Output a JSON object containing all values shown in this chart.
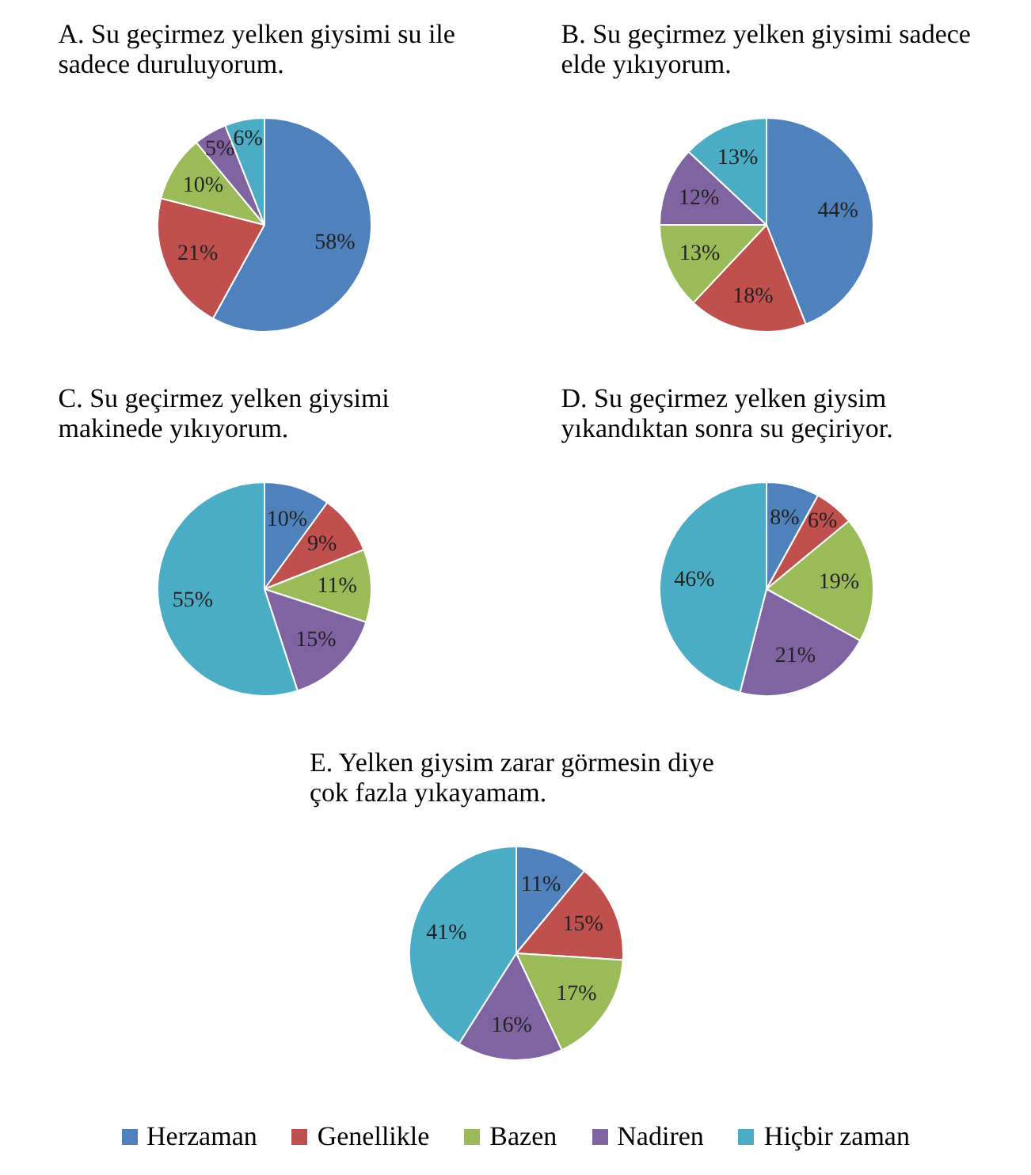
{
  "chart_data": [
    {
      "type": "pie",
      "title": "A.  Su geçirmez yelken giysimi su ile sadece duruluyorum.",
      "categories": [
        null,
        null,
        null,
        null,
        null
      ],
      "values": [
        58,
        21,
        10,
        5,
        6
      ],
      "colors": [
        "#4f81bd",
        "#c0504d",
        "#9bbb59",
        "#8064a2",
        "#4bacc6"
      ],
      "value_labels": [
        "58%",
        "21%",
        "10%",
        "5%",
        "6%"
      ]
    },
    {
      "type": "pie",
      "title": "B.  Su geçirmez yelken giysimi sadece elde yıkıyorum.",
      "categories": [
        null,
        null,
        null,
        null,
        null
      ],
      "values": [
        44,
        18,
        13,
        12,
        13
      ],
      "colors": [
        "#4f81bd",
        "#c0504d",
        "#9bbb59",
        "#8064a2",
        "#4bacc6"
      ],
      "value_labels": [
        "44%",
        "18%",
        "13%",
        "12%",
        "13%"
      ]
    },
    {
      "type": "pie",
      "title": "C.  Su geçirmez yelken giysimi makinede yıkıyorum.",
      "categories": [
        null,
        null,
        null,
        null,
        null
      ],
      "values": [
        10,
        9,
        11,
        15,
        55
      ],
      "colors": [
        "#4f81bd",
        "#c0504d",
        "#9bbb59",
        "#8064a2",
        "#4bacc6"
      ],
      "value_labels": [
        "10%",
        "9%",
        "11%",
        "15%",
        "55%"
      ]
    },
    {
      "type": "pie",
      "title": "D.  Su geçirmez yelken giysim yıkandıktan sonra su geçiriyor.",
      "categories": [
        null,
        null,
        null,
        null,
        null
      ],
      "values": [
        8,
        6,
        19,
        21,
        46
      ],
      "colors": [
        "#4f81bd",
        "#c0504d",
        "#9bbb59",
        "#8064a2",
        "#4bacc6"
      ],
      "value_labels": [
        "8%",
        "6%",
        "19%",
        "21%",
        "46%"
      ]
    },
    {
      "type": "pie",
      "title": "E.  Yelken giysim zarar görmesin diye çok fazla yıkayamam.",
      "categories": [
        "Herzaman",
        "Genellikle",
        "Bazen",
        "Nadiren",
        "Hiçbir zaman"
      ],
      "values": [
        11,
        15,
        17,
        16,
        41
      ],
      "colors": [
        "#4f81bd",
        "#c0504d",
        "#9bbb59",
        "#8064a2",
        "#4bacc6"
      ],
      "value_labels": [
        "11%",
        "15%",
        "17%",
        "16%",
        "41%"
      ],
      "legend": "bottom"
    }
  ]
}
